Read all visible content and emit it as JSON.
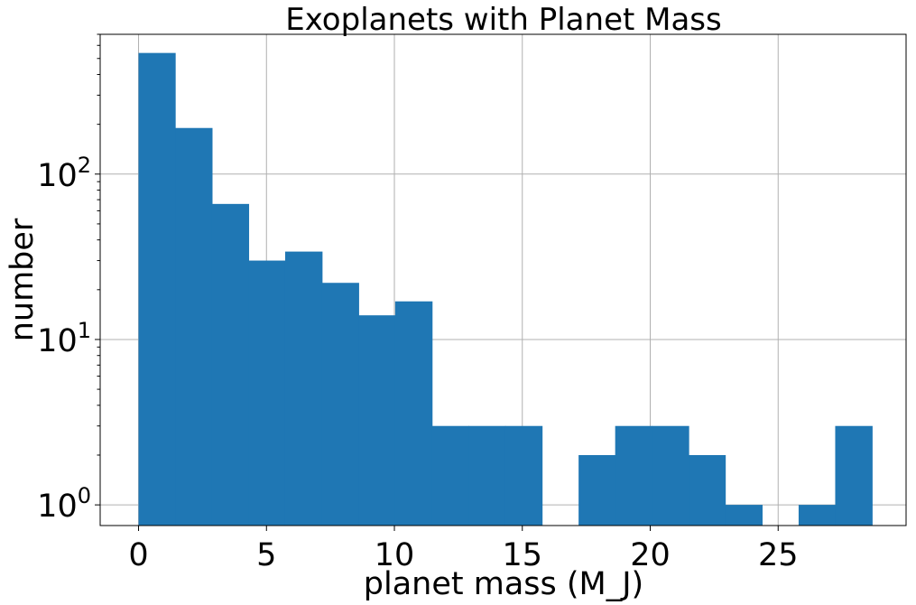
{
  "chart_data": {
    "type": "bar",
    "title": "Exoplanets with Planet Mass",
    "xlabel": "planet mass (M_J)",
    "ylabel": "number",
    "y_scale": "log",
    "grid": true,
    "xlim": [
      -1.5,
      30.0
    ],
    "ylim": [
      0.75,
      700
    ],
    "x_ticks": [
      0,
      5,
      10,
      15,
      20,
      25
    ],
    "x_tick_labels": [
      "0",
      "5",
      "10",
      "15",
      "20",
      "25"
    ],
    "y_ticks": [
      1,
      10,
      100
    ],
    "y_tick_labels": [
      {
        "base": "10",
        "exp": "0"
      },
      {
        "base": "10",
        "exp": "1"
      },
      {
        "base": "10",
        "exp": "2"
      }
    ],
    "bin_edges": [
      0.0,
      1.43,
      2.87,
      4.3,
      5.73,
      7.17,
      8.6,
      10.03,
      11.47,
      12.9,
      14.33,
      15.77,
      17.2,
      18.63,
      20.07,
      21.5,
      22.93,
      24.37,
      25.8,
      27.23,
      28.67
    ],
    "values": [
      540,
      190,
      66,
      30,
      34,
      22,
      14,
      17,
      3,
      3,
      3,
      0,
      2,
      3,
      3,
      2,
      1,
      0,
      1,
      3
    ],
    "bar_color": "#1f77b4",
    "grid_color": "#b0b0b0"
  }
}
